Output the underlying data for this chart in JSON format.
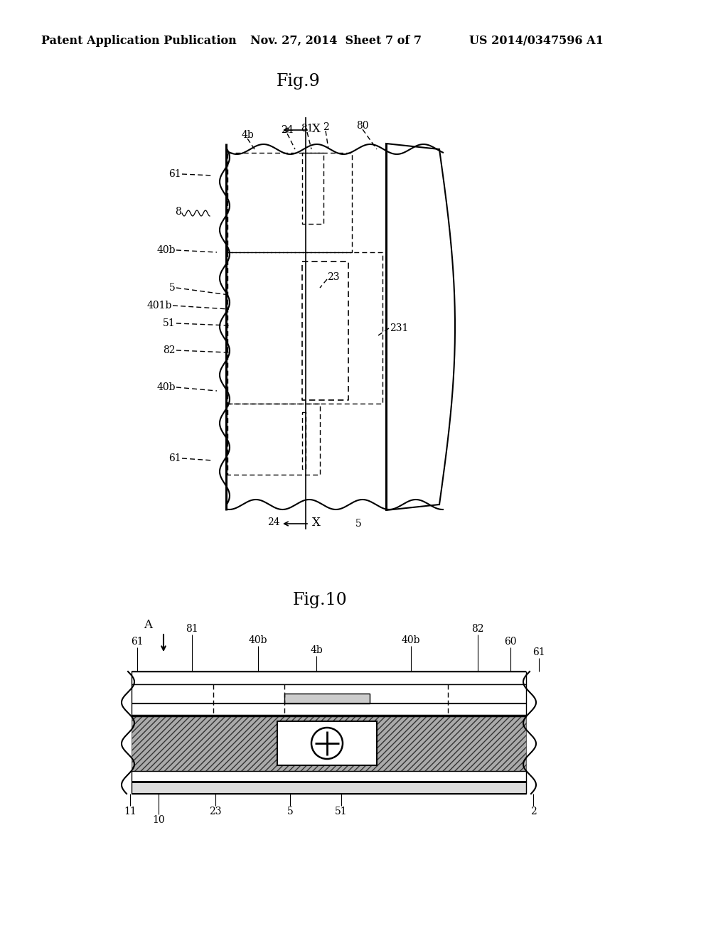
{
  "bg_color": "#ffffff",
  "header_left": "Patent Application Publication",
  "header_mid": "Nov. 27, 2014  Sheet 7 of 7",
  "header_right": "US 2014/0347596 A1",
  "fig9_title": "Fig.9",
  "fig10_title": "Fig.10"
}
